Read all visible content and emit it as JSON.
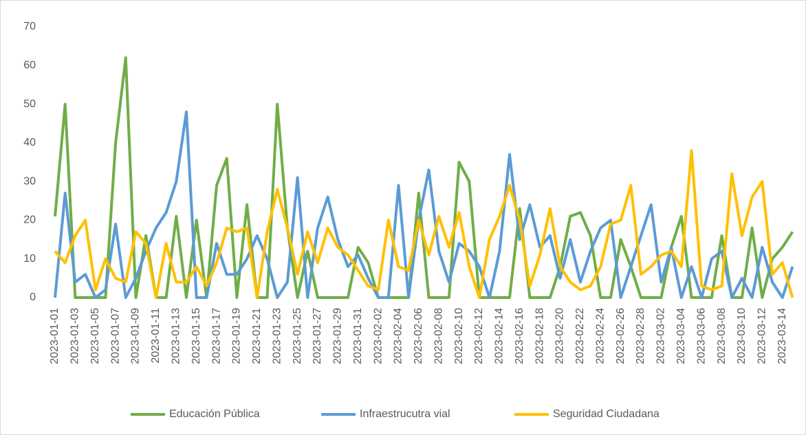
{
  "chart_data": {
    "type": "line",
    "categories": [
      "2023-01-01",
      null,
      "2023-01-03",
      null,
      "2023-01-05",
      null,
      "2023-01-07",
      null,
      "2023-01-09",
      null,
      "2023-01-11",
      null,
      "2023-01-13",
      null,
      "2023-01-15",
      null,
      "2023-01-17",
      null,
      "2023-01-19",
      null,
      "2023-01-21",
      null,
      "2023-01-23",
      null,
      "2023-01-25",
      null,
      "2023-01-27",
      null,
      "2023-01-29",
      null,
      "2023-01-31",
      null,
      "2023-02-02",
      null,
      "2023-02-04",
      null,
      "2023-02-06",
      null,
      "2023-02-08",
      null,
      "2023-02-10",
      null,
      "2023-02-12",
      null,
      "2023-02-14",
      null,
      "2023-02-16",
      null,
      "2023-02-18",
      null,
      "2023-02-20",
      null,
      "2023-02-22",
      null,
      "2023-02-24",
      null,
      "2023-02-26",
      null,
      "2023-02-28",
      null,
      "2023-03-02",
      null,
      "2023-03-04",
      null,
      "2023-03-06",
      null,
      "2023-03-08",
      null,
      "2023-03-10",
      null,
      "2023-03-12",
      null,
      "2023-03-14",
      null
    ],
    "series": [
      {
        "name": "Educación Pública",
        "color": "#70ad47",
        "values": [
          21,
          50,
          0,
          0,
          0,
          0,
          40,
          62,
          0,
          16,
          0,
          0,
          21,
          0,
          20,
          0,
          29,
          36,
          0,
          24,
          0,
          0,
          50,
          18,
          0,
          12,
          0,
          0,
          0,
          0,
          13,
          9,
          0,
          0,
          0,
          0,
          27,
          0,
          0,
          0,
          35,
          30,
          0,
          0,
          0,
          0,
          23,
          0,
          0,
          0,
          8,
          21,
          22,
          16,
          0,
          0,
          15,
          8,
          0,
          0,
          0,
          13,
          21,
          0,
          0,
          0,
          16,
          0,
          0,
          18,
          0,
          10,
          13,
          17
        ]
      },
      {
        "name": "Infraestrucutra vial",
        "color": "#5b9bd5",
        "values": [
          0,
          27,
          4,
          6,
          0,
          2,
          19,
          0,
          5,
          12,
          18,
          22,
          30,
          48,
          0,
          0,
          14,
          6,
          6,
          10,
          16,
          10,
          0,
          4,
          31,
          0,
          18,
          26,
          15,
          8,
          11,
          5,
          0,
          0,
          29,
          0,
          20,
          33,
          12,
          4,
          14,
          12,
          8,
          0,
          12,
          37,
          15,
          24,
          13,
          16,
          5,
          15,
          4,
          12,
          18,
          20,
          0,
          8,
          16,
          24,
          4,
          13,
          0,
          8,
          0,
          10,
          12,
          0,
          5,
          0,
          13,
          4,
          0,
          8
        ]
      },
      {
        "name": "Seguridad Ciudadana",
        "color": "#ffc000",
        "values": [
          12,
          9,
          16,
          20,
          2,
          10,
          5,
          4,
          17,
          14,
          0,
          14,
          4,
          4,
          8,
          3,
          9,
          18,
          17,
          18,
          0,
          17,
          28,
          18,
          6,
          17,
          9,
          18,
          13,
          11,
          7,
          3,
          2,
          20,
          8,
          7,
          20,
          11,
          21,
          13,
          22,
          8,
          0,
          15,
          21,
          29,
          20,
          3,
          11,
          23,
          8,
          4,
          2,
          3,
          8,
          19,
          20,
          29,
          6,
          8,
          11,
          12,
          8,
          38,
          3,
          2,
          3,
          32,
          16,
          26,
          30,
          6,
          9,
          0
        ]
      }
    ],
    "ylim": [
      0,
      70
    ],
    "yticks": [
      0,
      10,
      20,
      30,
      40,
      50,
      60,
      70
    ],
    "grid": false,
    "legend": "bottom"
  }
}
